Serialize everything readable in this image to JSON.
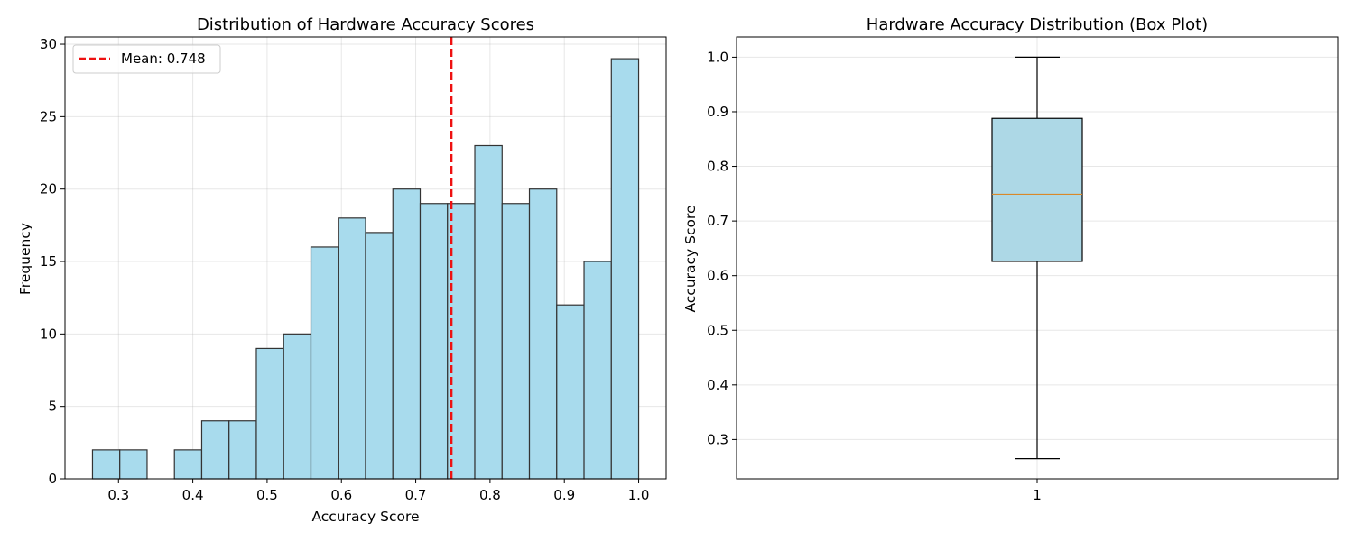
{
  "chart_data": [
    {
      "type": "histogram",
      "title": "Distribution of Hardware Accuracy Scores",
      "xlabel": "Accuracy Score",
      "ylabel": "Frequency",
      "xlim": [
        0.228,
        1.037
      ],
      "ylim": [
        0,
        30.5
      ],
      "xticks": [
        "0.3",
        "0.4",
        "0.5",
        "0.6",
        "0.7",
        "0.8",
        "0.9",
        "1.0"
      ],
      "yticks": [
        "0",
        "5",
        "10",
        "15",
        "20",
        "25",
        "30"
      ],
      "bin_start": 0.265,
      "bin_width": 0.03675,
      "counts": [
        2,
        2,
        0,
        2,
        4,
        4,
        9,
        10,
        16,
        18,
        17,
        20,
        19,
        19,
        23,
        19,
        20,
        12,
        15,
        29
      ],
      "bar_color": "#a8dbed",
      "bar_edge_color": "#333333",
      "grid": true,
      "mean_line": {
        "value": 0.748,
        "color": "#ee1111",
        "label": "Mean: 0.748"
      },
      "legend_position": "top-left"
    },
    {
      "type": "box",
      "title": "Hardware Accuracy Distribution (Box Plot)",
      "xlabel": "",
      "ylabel": "Accuracy Score",
      "ylim": [
        0.228,
        1.037
      ],
      "xticks": [
        "1"
      ],
      "yticks": [
        "0.3",
        "0.4",
        "0.5",
        "0.6",
        "0.7",
        "0.8",
        "0.9",
        "1.0"
      ],
      "box": {
        "whisker_low": 0.265,
        "q1": 0.626,
        "median": 0.749,
        "q3": 0.888,
        "whisker_high": 1.0
      },
      "box_color": "#add8e6",
      "median_color": "#d9882a",
      "grid": true
    }
  ]
}
